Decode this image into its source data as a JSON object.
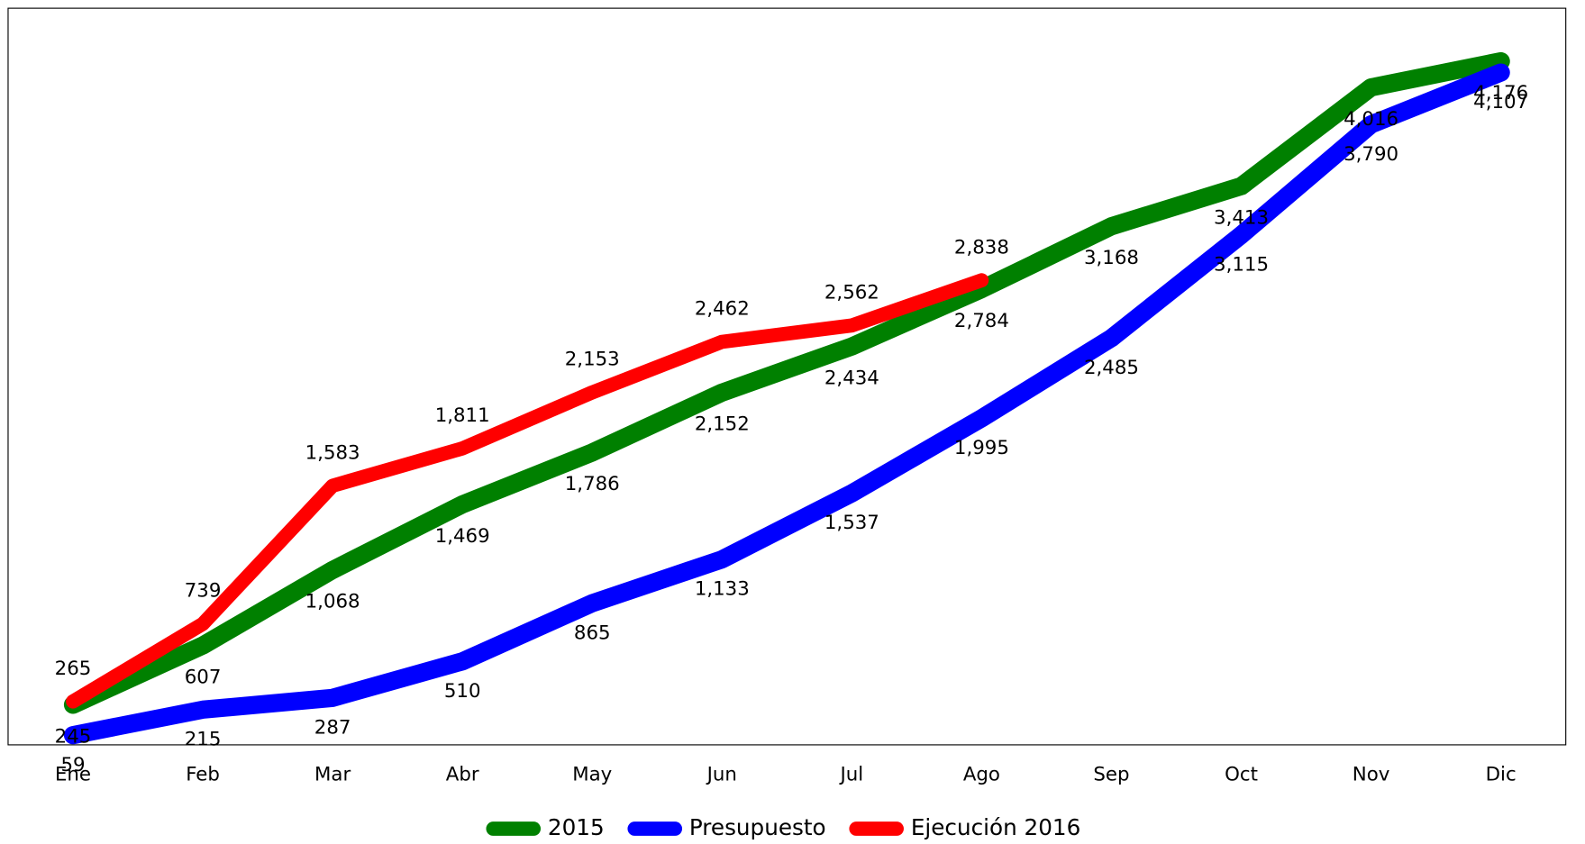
{
  "chart_data": {
    "type": "line",
    "categories": [
      "Ene",
      "Feb",
      "Mar",
      "Abr",
      "May",
      "Jun",
      "Jul",
      "Ago",
      "Sep",
      "Oct",
      "Nov",
      "Dic"
    ],
    "ylim": [
      0,
      4500
    ],
    "series": [
      {
        "name": "2015",
        "color": "#008000",
        "values": [
          245,
          607,
          1068,
          1469,
          1786,
          2152,
          2434,
          2784,
          3168,
          3413,
          4016,
          4176
        ],
        "value_labels": [
          "245",
          "607",
          "1,068",
          "1,469",
          "1,786",
          "2,152",
          "2,434",
          "2,784",
          "3,168",
          "3,413",
          "4,016",
          "4,176"
        ]
      },
      {
        "name": "Presupuesto",
        "color": "#0000ff",
        "values": [
          59,
          215,
          287,
          510,
          865,
          1133,
          1537,
          1995,
          2485,
          3115,
          3790,
          4107
        ],
        "value_labels": [
          "59",
          "215",
          "287",
          "510",
          "865",
          "1,133",
          "1,537",
          "1,995",
          "2,485",
          "3,115",
          "3,790",
          "4,107"
        ]
      },
      {
        "name": "Ejecución 2016",
        "color": "#ff0000",
        "values": [
          265,
          739,
          1583,
          1811,
          2153,
          2462,
          2562,
          2838,
          null,
          null,
          null,
          null
        ],
        "value_labels": [
          "265",
          "739",
          "1,583",
          "1,811",
          "2,153",
          "2,462",
          "2,562",
          "2,838",
          null,
          null,
          null,
          null
        ]
      }
    ],
    "legend": "bottom"
  }
}
